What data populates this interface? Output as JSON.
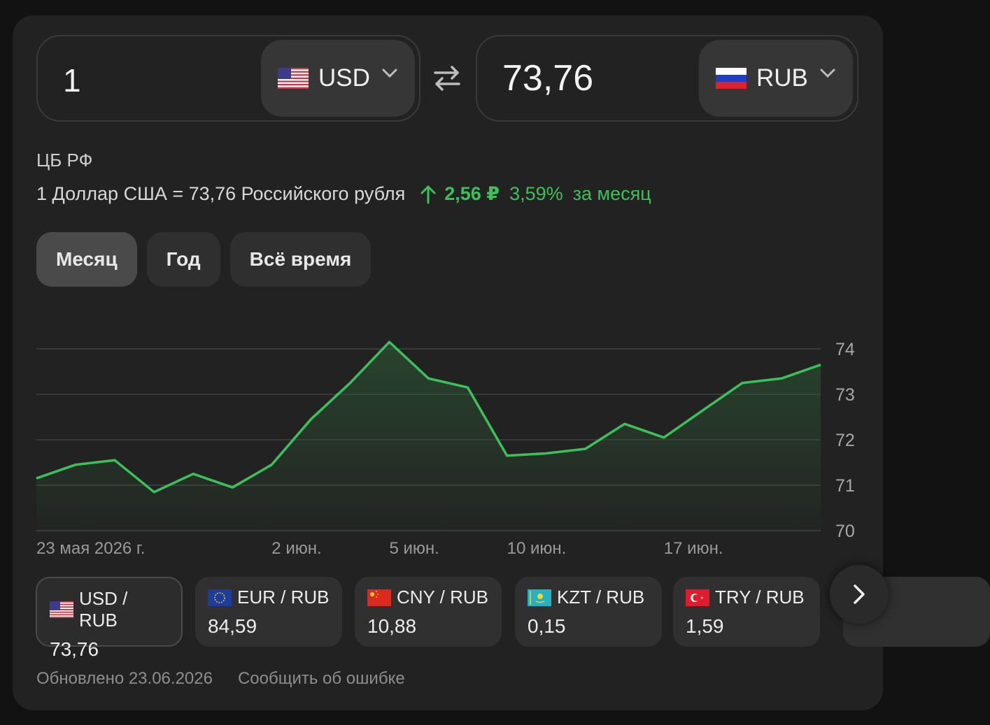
{
  "converter": {
    "from": {
      "amount": "1",
      "currency": "USD",
      "flag_icon": "us-flag-icon"
    },
    "to": {
      "amount": "73,76",
      "currency": "RUB",
      "flag_icon": "ru-flag-icon"
    },
    "swap_icon": "swap-arrows-icon"
  },
  "source": "ЦБ РФ",
  "rate": {
    "text": "1 Доллар США = 73,76 Российского рубля",
    "change": "2,56 ₽",
    "percent": "3,59%",
    "period": "за месяц",
    "trend_icon": "arrow-up-icon",
    "trend_color": "#3cc15a"
  },
  "period_tabs": [
    {
      "label": "Месяц",
      "active": true
    },
    {
      "label": "Год",
      "active": false
    },
    {
      "label": "Всё время",
      "active": false
    }
  ],
  "chart_data": {
    "type": "area",
    "series": [
      {
        "values": [
          71.15,
          71.45,
          71.55,
          70.85,
          71.25,
          70.95,
          71.45,
          72.45,
          73.25,
          74.15,
          73.35,
          73.15,
          71.65,
          71.7,
          71.8,
          72.35,
          72.05,
          72.65,
          73.25,
          73.35,
          73.65
        ]
      }
    ],
    "y_ticks": [
      "74",
      "73",
      "72",
      "71",
      "70"
    ],
    "ylim": [
      70,
      74
    ],
    "x_labels": [
      "23 мая 2026 г.",
      "2 июн.",
      "5 июн.",
      "10 июн.",
      "17 июн."
    ],
    "x_label_indices": [
      0,
      6,
      9,
      12,
      16
    ],
    "grid": true,
    "line_color": "#3cc15a"
  },
  "pairs": [
    {
      "label": "USD / RUB",
      "value": "73,76",
      "flag_icon": "us-flag-icon",
      "active": true
    },
    {
      "label": "EUR / RUB",
      "value": "84,59",
      "flag_icon": "eu-flag-icon",
      "active": false
    },
    {
      "label": "CNY / RUB",
      "value": "10,88",
      "flag_icon": "cn-flag-icon",
      "active": false
    },
    {
      "label": "KZT / RUB",
      "value": "0,15",
      "flag_icon": "kz-flag-icon",
      "active": false
    },
    {
      "label": "TRY / RUB",
      "value": "1,59",
      "flag_icon": "tr-flag-icon",
      "active": false
    }
  ],
  "next_icon": "chevron-right-icon",
  "footer": {
    "updated": "Обновлено 23.06.2026",
    "report": "Сообщить об ошибке"
  }
}
